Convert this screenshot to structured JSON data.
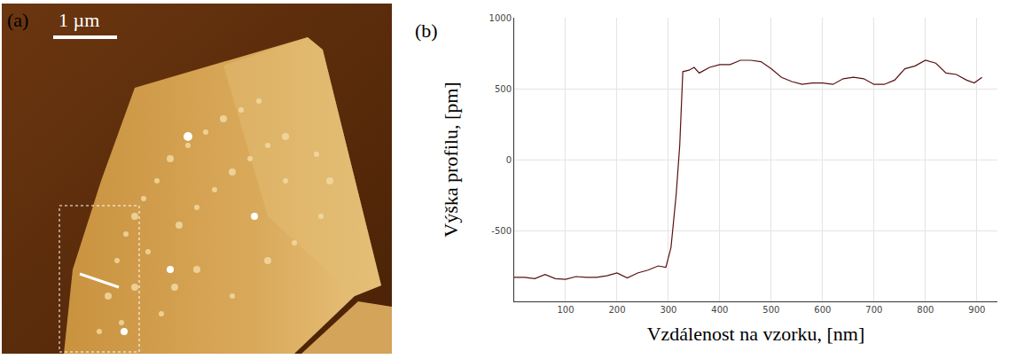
{
  "image_panel": {
    "label": "(a)",
    "scale_bar": "1 µm"
  },
  "chart_data": {
    "type": "line",
    "panel_label": "(b)",
    "xlabel": "Vzdálenost na vzorku, [nm]",
    "ylabel": "Výška profilu, [pm]",
    "x": [
      0,
      20,
      40,
      60,
      80,
      100,
      120,
      140,
      160,
      180,
      200,
      220,
      240,
      260,
      280,
      295,
      305,
      315,
      322,
      328,
      340,
      350,
      360,
      380,
      400,
      420,
      440,
      460,
      480,
      500,
      520,
      540,
      560,
      580,
      600,
      620,
      640,
      660,
      680,
      700,
      720,
      740,
      760,
      780,
      800,
      820,
      840,
      860,
      880,
      895,
      910
    ],
    "values": [
      -830,
      -830,
      -840,
      -810,
      -840,
      -845,
      -825,
      -830,
      -830,
      -820,
      -800,
      -835,
      -800,
      -780,
      -750,
      -760,
      -620,
      -250,
      100,
      620,
      630,
      650,
      610,
      650,
      670,
      670,
      700,
      700,
      690,
      640,
      580,
      550,
      530,
      540,
      540,
      530,
      570,
      580,
      570,
      530,
      530,
      560,
      640,
      660,
      700,
      680,
      610,
      600,
      560,
      540,
      580
    ],
    "color": "#5a1010",
    "line_style": "solid",
    "xlim": [
      0,
      940
    ],
    "ylim": [
      -1000,
      1000
    ],
    "xticks": [
      100,
      200,
      300,
      400,
      500,
      600,
      700,
      800,
      900
    ],
    "yticks": [
      -500,
      0,
      500,
      1000
    ],
    "grid": true
  }
}
